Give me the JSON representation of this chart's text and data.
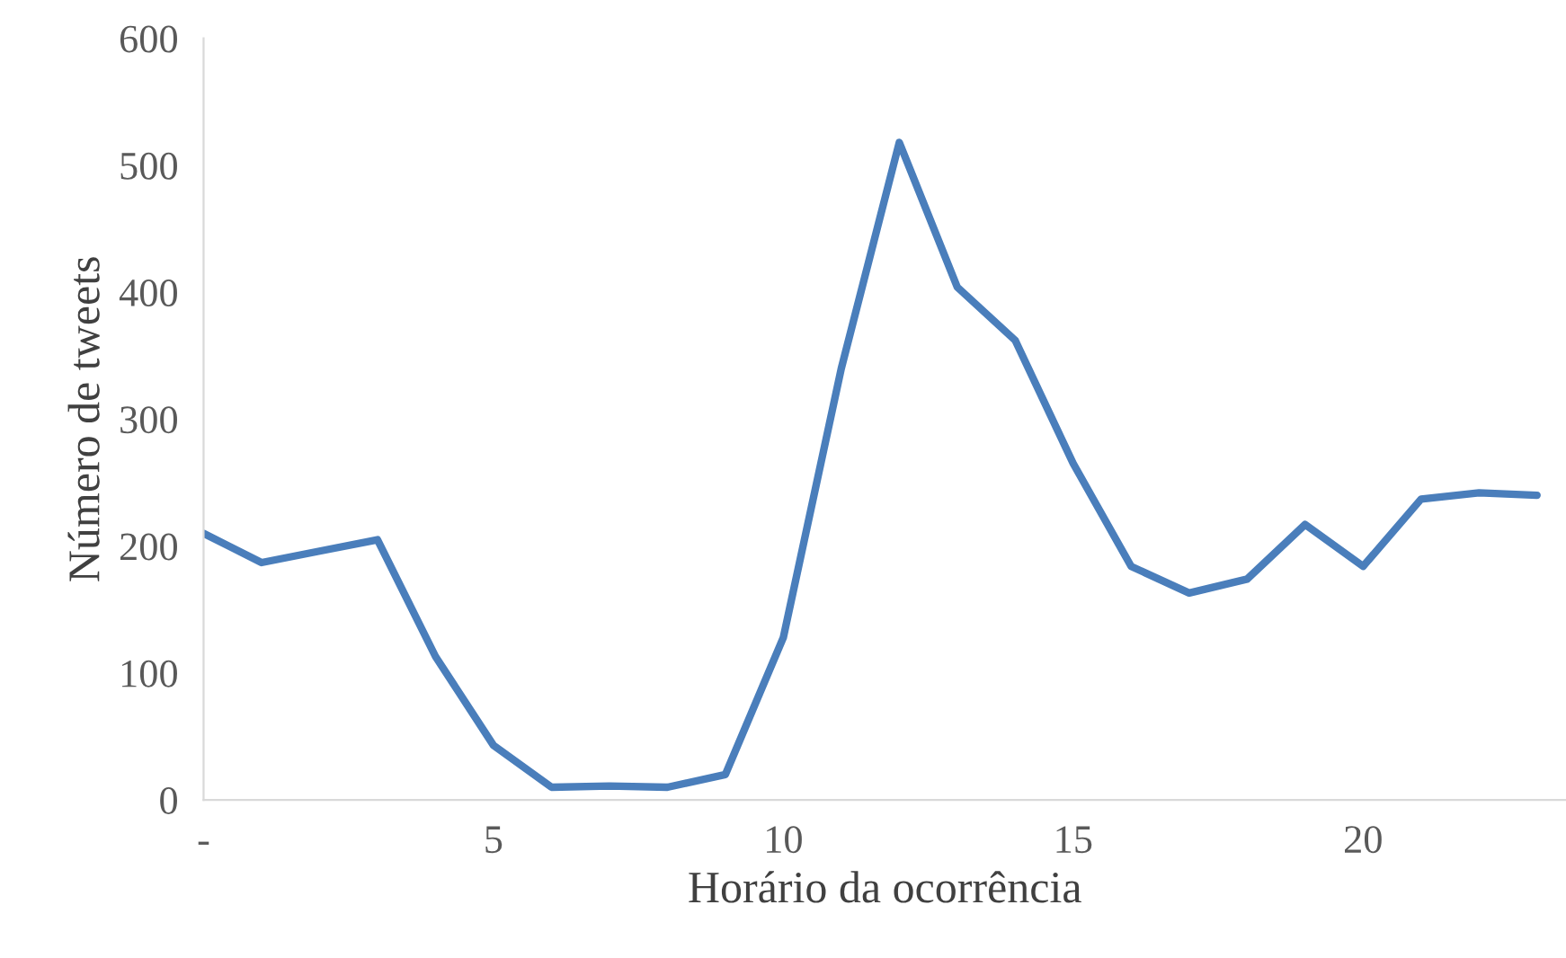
{
  "chart_data": {
    "type": "line",
    "xlabel": "Horário da ocorrência",
    "ylabel": "Número de tweets",
    "x": [
      0,
      1,
      2,
      3,
      4,
      5,
      6,
      7,
      8,
      9,
      10,
      11,
      12,
      13,
      14,
      15,
      16,
      17,
      18,
      19,
      20,
      21,
      22,
      23
    ],
    "series": [
      {
        "color": "#4a7ebb",
        "values": [
          210,
          187,
          196,
          205,
          113,
          43,
          10,
          11,
          10,
          20,
          128,
          340,
          518,
          404,
          362,
          265,
          184,
          163,
          174,
          217,
          184,
          237,
          242,
          240
        ]
      }
    ],
    "xlim": [
      0,
      23.5
    ],
    "xticks": [
      {
        "value": 0,
        "label": "-"
      },
      5,
      10,
      15,
      20
    ],
    "ylim": [
      0,
      600
    ],
    "yticks": [
      0,
      100,
      200,
      300,
      400,
      500,
      600
    ],
    "grid": false,
    "marker": "none",
    "line_style": "solid"
  }
}
